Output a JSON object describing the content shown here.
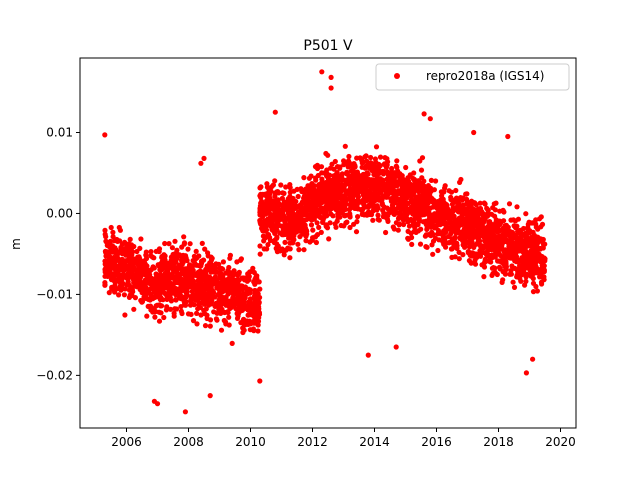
{
  "chart_data": {
    "type": "scatter",
    "title": "P501 V",
    "xlabel": "",
    "ylabel": "m",
    "xlim": [
      2004.5,
      2020.5
    ],
    "ylim": [
      -0.0265,
      0.0192
    ],
    "x_ticks": [
      2006,
      2008,
      2010,
      2012,
      2014,
      2016,
      2018,
      2020
    ],
    "x_tick_labels": [
      "2006",
      "2008",
      "2010",
      "2012",
      "2014",
      "2016",
      "2018",
      "2020"
    ],
    "y_ticks": [
      -0.02,
      -0.01,
      0.0,
      0.01
    ],
    "y_tick_labels": [
      "−0.02",
      "−0.01",
      "0.00",
      "0.01"
    ],
    "grid": false,
    "legend_position": "top-right",
    "color": "#ff0000",
    "series": [
      {
        "name": "repro2018a (IGS14)",
        "color": "#ff0000",
        "marker": "circle",
        "trend_segments": [
          {
            "x": [
              2005.3,
              2006.5
            ],
            "y": [
              -0.0055,
              -0.0075
            ]
          },
          {
            "x": [
              2006.5,
              2008.0
            ],
            "y": [
              -0.0085,
              -0.008
            ]
          },
          {
            "x": [
              2008.0,
              2010.3
            ],
            "y": [
              -0.008,
              -0.011
            ]
          },
          {
            "x": [
              2010.3,
              2011.5
            ],
            "y": [
              0.0,
              -0.0005
            ]
          },
          {
            "x": [
              2011.5,
              2012.5
            ],
            "y": [
              -0.0005,
              0.0025
            ]
          },
          {
            "x": [
              2012.5,
              2014.6
            ],
            "y": [
              0.0025,
              0.0035
            ]
          },
          {
            "x": [
              2014.6,
              2016.5
            ],
            "y": [
              0.0025,
              -0.001
            ]
          },
          {
            "x": [
              2016.5,
              2019.5
            ],
            "y": [
              -0.001,
              -0.0055
            ]
          }
        ],
        "outliers": [
          {
            "x": 2005.3,
            "y": 0.0097
          },
          {
            "x": 2006.9,
            "y": -0.0232
          },
          {
            "x": 2007.0,
            "y": -0.0235
          },
          {
            "x": 2007.9,
            "y": -0.0245
          },
          {
            "x": 2008.5,
            "y": 0.0068
          },
          {
            "x": 2008.4,
            "y": 0.0062
          },
          {
            "x": 2008.7,
            "y": -0.0225
          },
          {
            "x": 2010.3,
            "y": -0.0207
          },
          {
            "x": 2010.8,
            "y": 0.0125
          },
          {
            "x": 2012.3,
            "y": 0.0175
          },
          {
            "x": 2012.6,
            "y": 0.0168
          },
          {
            "x": 2012.6,
            "y": 0.0155
          },
          {
            "x": 2013.8,
            "y": -0.0175
          },
          {
            "x": 2014.7,
            "y": -0.0165
          },
          {
            "x": 2015.6,
            "y": 0.0123
          },
          {
            "x": 2015.8,
            "y": 0.0117
          },
          {
            "x": 2017.2,
            "y": 0.01
          },
          {
            "x": 2018.3,
            "y": 0.0095
          },
          {
            "x": 2018.9,
            "y": -0.0197
          },
          {
            "x": 2019.1,
            "y": -0.018
          }
        ]
      }
    ]
  }
}
